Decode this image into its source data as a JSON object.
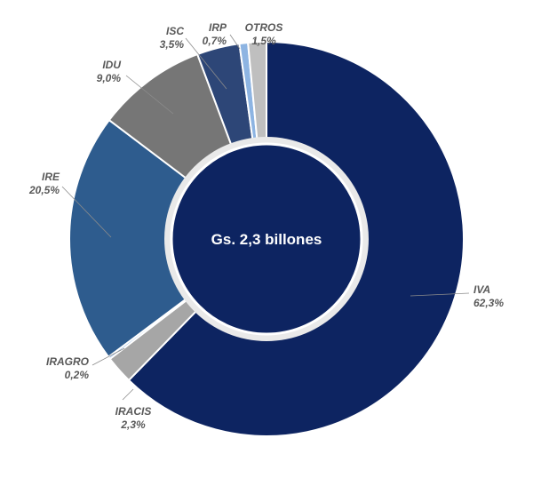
{
  "chart_data": {
    "type": "pie",
    "variant": "donut",
    "center_label": "Gs. 2,3 billones",
    "slices": [
      {
        "name": "IVA",
        "pct_label": "62,3%",
        "value": 62.3,
        "color": "#0d2461"
      },
      {
        "name": "IRACIS",
        "pct_label": "2,3%",
        "value": 2.3,
        "color": "#a6a6a6"
      },
      {
        "name": "IRAGRO",
        "pct_label": "0,2%",
        "value": 0.2,
        "color": "#8eb4e3"
      },
      {
        "name": "IRE",
        "pct_label": "20,5%",
        "value": 20.5,
        "color": "#2e5c8e"
      },
      {
        "name": "IDU",
        "pct_label": "9,0%",
        "value": 9.0,
        "color": "#767676"
      },
      {
        "name": "ISC",
        "pct_label": "3,5%",
        "value": 3.5,
        "color": "#2d4677"
      },
      {
        "name": "IRP",
        "pct_label": "0,7%",
        "value": 0.7,
        "color": "#8db4e2"
      },
      {
        "name": "OTROS",
        "pct_label": "1,5%",
        "value": 1.5,
        "color": "#bfbfbf"
      }
    ]
  }
}
